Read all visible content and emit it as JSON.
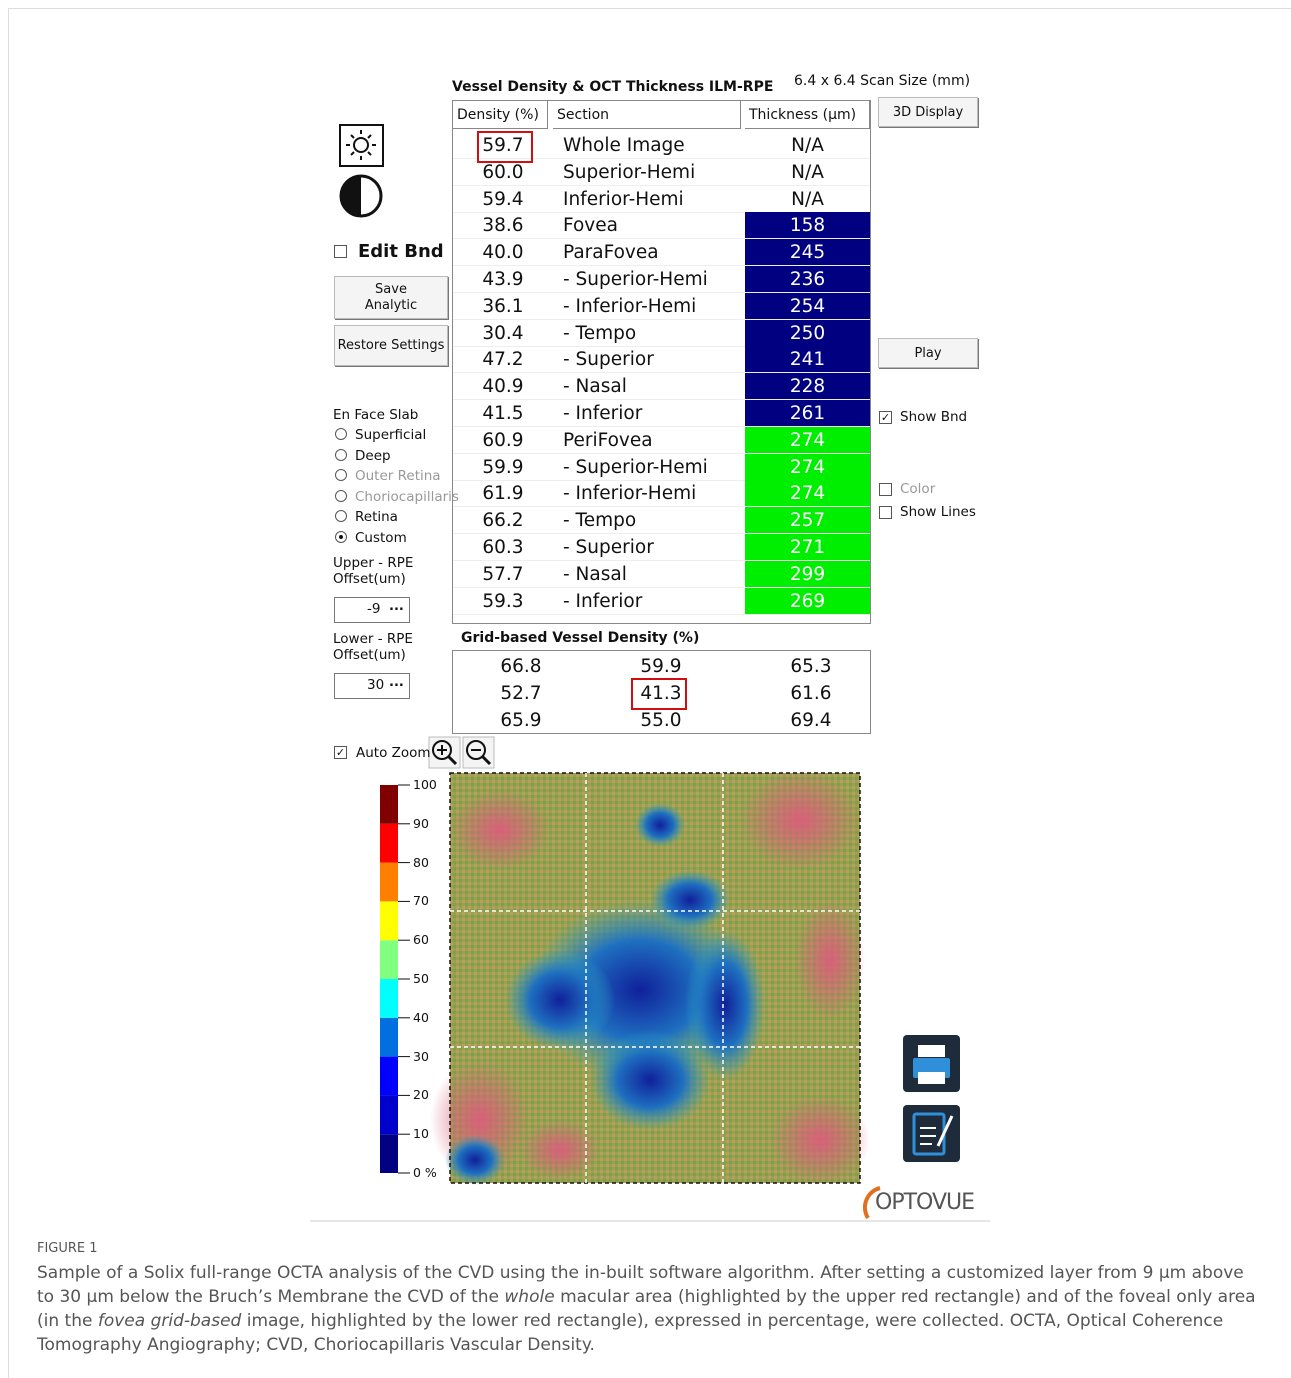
{
  "header": {
    "title": "Vessel Density & OCT Thickness ILM-RPE",
    "scan_size": "6.4 x 6.4 Scan Size (mm)"
  },
  "table": {
    "columns": [
      "Density (%)",
      "Section",
      "Thickness (µm)"
    ],
    "rows": [
      {
        "density": "59.7",
        "section": "Whole Image",
        "thickness": "N/A",
        "color": null
      },
      {
        "density": "60.0",
        "section": "Superior-Hemi",
        "thickness": "N/A",
        "color": null
      },
      {
        "density": "59.4",
        "section": "Inferior-Hemi",
        "thickness": "N/A",
        "color": null
      },
      {
        "density": "38.6",
        "section": "Fovea",
        "thickness": "158",
        "color": "#000080"
      },
      {
        "density": "40.0",
        "section": "ParaFovea",
        "thickness": "245",
        "color": "#000080"
      },
      {
        "density": "43.9",
        "section": "- Superior-Hemi",
        "thickness": "236",
        "color": "#000080"
      },
      {
        "density": "36.1",
        "section": "- Inferior-Hemi",
        "thickness": "254",
        "color": "#000080"
      },
      {
        "density": "30.4",
        "section": "- Tempo",
        "thickness": "250",
        "color": "#000080"
      },
      {
        "density": "47.2",
        "section": "- Superior",
        "thickness": "241",
        "color": "#000080"
      },
      {
        "density": "40.9",
        "section": "- Nasal",
        "thickness": "228",
        "color": "#000080"
      },
      {
        "density": "41.5",
        "section": "- Inferior",
        "thickness": "261",
        "color": "#000080"
      },
      {
        "density": "60.9",
        "section": "PeriFovea",
        "thickness": "274",
        "color": "#00ee00"
      },
      {
        "density": "59.9",
        "section": "- Superior-Hemi",
        "thickness": "274",
        "color": "#00ee00"
      },
      {
        "density": "61.9",
        "section": "- Inferior-Hemi",
        "thickness": "274",
        "color": "#00ee00"
      },
      {
        "density": "66.2",
        "section": "- Tempo",
        "thickness": "257",
        "color": "#00ee00"
      },
      {
        "density": "60.3",
        "section": "- Superior",
        "thickness": "271",
        "color": "#00ee00"
      },
      {
        "density": "57.7",
        "section": "- Nasal",
        "thickness": "299",
        "color": "#00ee00"
      },
      {
        "density": "59.3",
        "section": "- Inferior",
        "thickness": "269",
        "color": "#00ee00"
      }
    ]
  },
  "grid": {
    "title": "Grid-based Vessel Density (%)",
    "rows": [
      [
        "66.8",
        "59.9",
        "65.3"
      ],
      [
        "52.7",
        "41.3",
        "61.6"
      ],
      [
        "65.9",
        "55.0",
        "69.4"
      ]
    ]
  },
  "left_panel": {
    "edit_bnd": {
      "label": "Edit Bnd",
      "checked": false
    },
    "save_button": [
      "Save",
      "Analytic"
    ],
    "restore_button": "Restore Settings",
    "slab_label": "En Face Slab",
    "slabs": [
      {
        "label": "Superficial",
        "checked": false,
        "enabled": true
      },
      {
        "label": "Deep",
        "checked": false,
        "enabled": true
      },
      {
        "label": "Outer Retina",
        "checked": false,
        "enabled": false
      },
      {
        "label": "Choriocapillaris",
        "checked": false,
        "enabled": false
      },
      {
        "label": "Retina",
        "checked": false,
        "enabled": true
      },
      {
        "label": "Custom",
        "checked": true,
        "enabled": true
      }
    ],
    "upper": {
      "label": [
        "Upper - RPE",
        "Offset(um)"
      ],
      "value": "-9",
      "button": "..."
    },
    "lower": {
      "label": [
        "Lower - RPE",
        "Offset(um)"
      ],
      "value": "30",
      "button": "..."
    },
    "auto_zoom": {
      "label": "Auto Zoom",
      "checked": true
    }
  },
  "right_panel": {
    "display_button": "3D Display",
    "play_button": "Play",
    "checks": [
      {
        "label": "Show Bnd",
        "checked": true,
        "enabled": true
      },
      {
        "label": "Color",
        "checked": false,
        "enabled": false
      },
      {
        "label": "Show Lines",
        "checked": false,
        "enabled": true
      }
    ]
  },
  "colorbar": {
    "lim": [
      0,
      100
    ],
    "ticks": [
      {
        "value": 0,
        "label": "0 %"
      },
      10,
      20,
      30,
      40,
      50,
      60,
      70,
      80,
      90,
      100
    ],
    "colors": [
      "#000080",
      "#0000cc",
      "#0000ff",
      "#0070e0",
      "#00ffff",
      "#80ff80",
      "#ffff00",
      "#ff8000",
      "#ff0000",
      "#800000"
    ]
  },
  "logo": "OPTOVUE",
  "caption": {
    "label": "FIGURE 1",
    "parts": [
      "Sample of a Solix full-range OCTA analysis of the CVD using the in-built software algorithm. After setting a customized layer from 9 µm above to 30 µm below the Bruch’s Membrane the CVD of the ",
      "whole",
      " macular area (highlighted by the upper red rectangle) and of the foveal only area (in the ",
      "fovea grid-based",
      " image, highlighted by the lower red rectangle), expressed in percentage, were collected. OCTA, Optical Coherence Tomography Angiography; CVD, Choriocapillaris Vascular Density."
    ]
  }
}
